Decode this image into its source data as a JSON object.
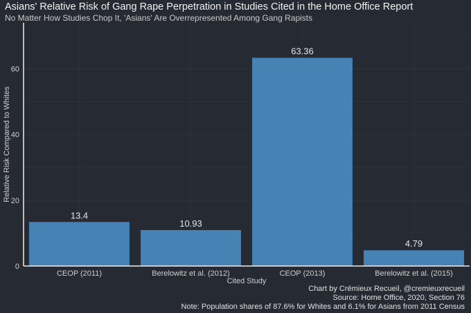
{
  "chart_data": {
    "type": "bar",
    "title": "Asians' Relative Risk of Gang Rape Perpetration in Studies Cited in the Home Office Report",
    "subtitle": "No Matter How Studies Chop It, 'Asians' Are Overrepresented Among Gang Rapists",
    "xlabel": "Cited Study",
    "ylabel": "Relative Risk Compared to Whites",
    "categories": [
      "CEOP (2011)",
      "Berelowitz et al. (2012)",
      "CEOP (2013)",
      "Berelowitz et al. (2015)"
    ],
    "values": [
      13.4,
      10.93,
      63.36,
      4.79
    ],
    "data_labels": [
      "13.4",
      "10.93",
      "63.36",
      "4.79"
    ],
    "ylim": [
      0,
      74
    ],
    "yticks": [
      0,
      20,
      40,
      60
    ],
    "grid": true,
    "legend": "none",
    "colors": {
      "bar": "#4682b4",
      "background": "#262a33",
      "grid": "#2f343e",
      "axis": "#f0f0f0"
    }
  },
  "captions": {
    "credit": "Chart by Crémieux Recueil, @cremieuxrecueil",
    "source": "Source: Home Office, 2020, Section 76",
    "note": "Note: Population shares of 87.6% for Whites and 6.1% for Asians from 2011 Census"
  }
}
